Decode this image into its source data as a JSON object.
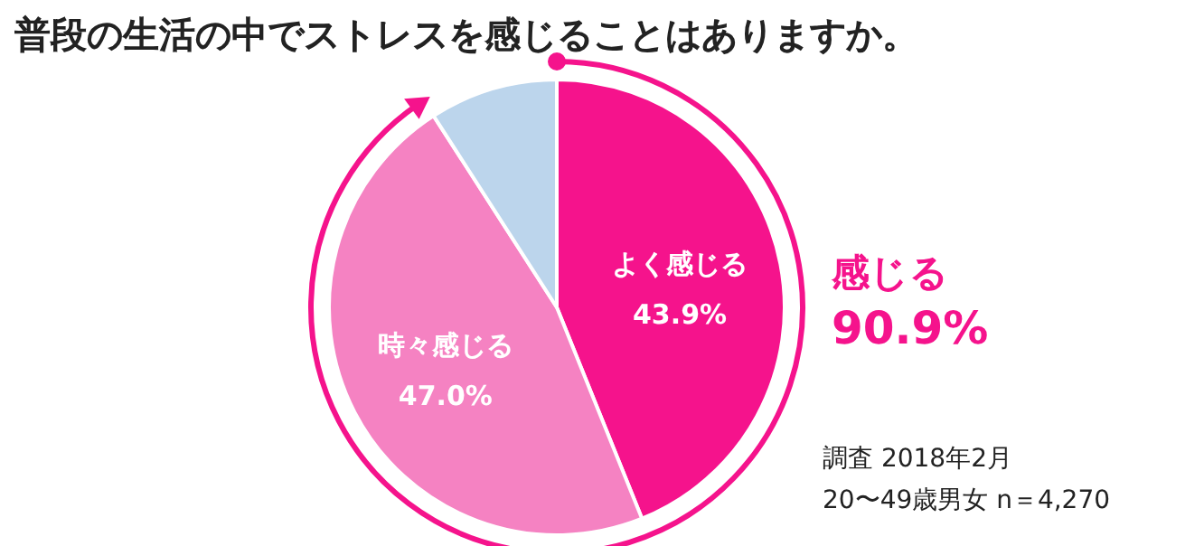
{
  "chart_data": {
    "type": "pie",
    "title": "普段の生活の中でストレスを感じることはありますか。",
    "categories": [
      "よく感じる",
      "時々感じる",
      null
    ],
    "values": [
      43.9,
      47.0,
      9.1
    ],
    "value_labels": [
      "43.9%",
      "47.0%",
      null
    ],
    "colors": [
      "#f5138c",
      "#f582c2",
      "#bcd5ec"
    ],
    "annotations": [
      "感じる",
      "90.9%",
      "調査 2018年2月",
      "20〜49歳男女 n＝4,270"
    ]
  }
}
